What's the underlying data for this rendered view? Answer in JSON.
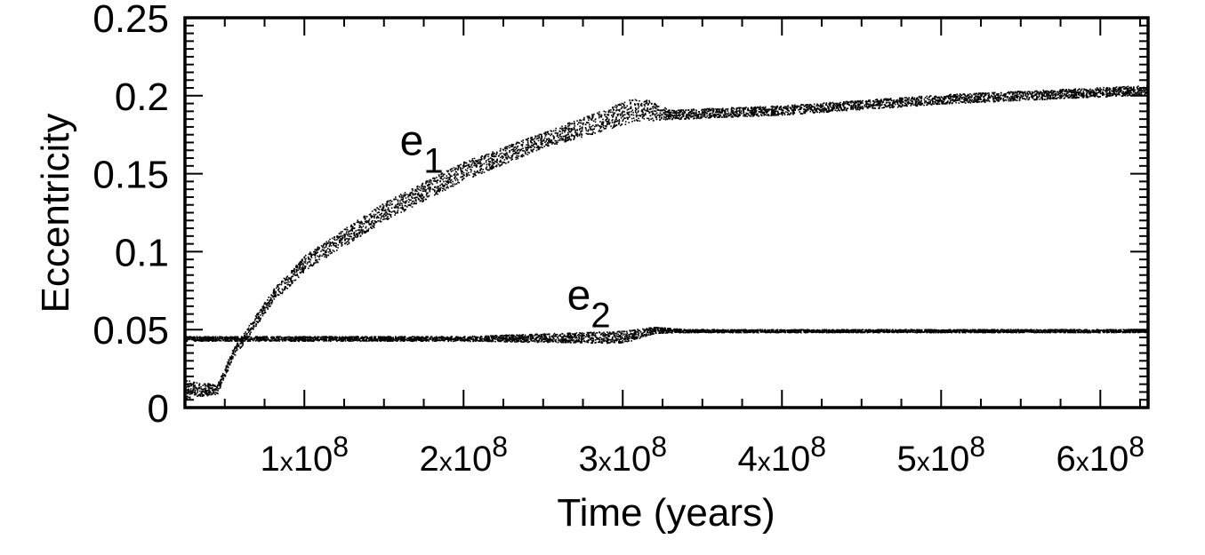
{
  "chart_data": {
    "type": "scatter",
    "xlabel": "Time (years)",
    "ylabel": "Eccentricity",
    "xlim": [
      25000000,
      630000000
    ],
    "ylim": [
      0,
      0.25
    ],
    "grid": false,
    "legend": "none",
    "x_ticks": [
      {
        "value": 100000000,
        "mantissa": "1",
        "times": "x",
        "base": "10",
        "exponent": "8"
      },
      {
        "value": 200000000,
        "mantissa": "2",
        "times": "x",
        "base": "10",
        "exponent": "8"
      },
      {
        "value": 300000000,
        "mantissa": "3",
        "times": "x",
        "base": "10",
        "exponent": "8"
      },
      {
        "value": 400000000,
        "mantissa": "4",
        "times": "x",
        "base": "10",
        "exponent": "8"
      },
      {
        "value": 500000000,
        "mantissa": "5",
        "times": "x",
        "base": "10",
        "exponent": "8"
      },
      {
        "value": 600000000,
        "mantissa": "6",
        "times": "x",
        "base": "10",
        "exponent": "8"
      }
    ],
    "y_ticks": [
      {
        "value": 0,
        "label": "0"
      },
      {
        "value": 0.05,
        "label": "0.05"
      },
      {
        "value": 0.1,
        "label": "0.1"
      },
      {
        "value": 0.15,
        "label": "0.15"
      },
      {
        "value": 0.2,
        "label": "0.2"
      },
      {
        "value": 0.25,
        "label": "0.25"
      }
    ],
    "series": [
      {
        "name": "e1",
        "label_base": "e",
        "label_sub": "1",
        "label_at": [
          160000000,
          0.162
        ],
        "color": "#000000",
        "band_halfwidth": [
          0.006,
          0.003,
          0.003,
          0.004,
          0.005,
          0.006,
          0.006,
          0.005,
          0.008,
          0.003,
          0.003,
          0.003,
          0.003,
          0.003
        ],
        "x": [
          25000000,
          45000000,
          55000000,
          80000000,
          100000000,
          150000000,
          200000000,
          250000000,
          310000000,
          330000000,
          350000000,
          400000000,
          500000000,
          630000000
        ],
        "y": [
          0.012,
          0.012,
          0.035,
          0.072,
          0.093,
          0.126,
          0.152,
          0.172,
          0.192,
          0.188,
          0.189,
          0.191,
          0.198,
          0.204
        ]
      },
      {
        "name": "e2",
        "label_base": "e",
        "label_sub": "2",
        "label_at": [
          265000000,
          0.063
        ],
        "color": "#000000",
        "band_halfwidth": [
          0.0015,
          0.0015,
          0.0015,
          0.004,
          0.002,
          0.001,
          0.001,
          0.001,
          0.001
        ],
        "x": [
          25000000,
          100000000,
          200000000,
          300000000,
          320000000,
          340000000,
          400000000,
          500000000,
          630000000
        ],
        "y": [
          0.0445,
          0.0445,
          0.0445,
          0.0455,
          0.05,
          0.0495,
          0.0495,
          0.0495,
          0.0495
        ]
      }
    ]
  }
}
